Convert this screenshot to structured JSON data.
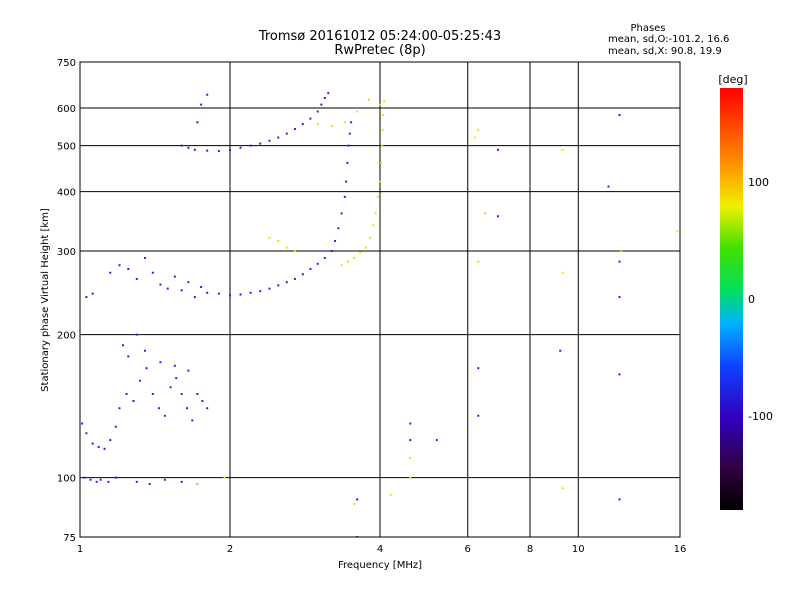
{
  "chart_data": {
    "type": "scatter",
    "title": "Tromsø 20161012 05:24:00-05:25:43",
    "subtitle": "RwPretec (8p)",
    "xlabel": "Frequency [MHz]",
    "ylabel": "Stationary phase Virtual Height [km]",
    "xscale": "log",
    "yscale": "log",
    "xlim": [
      1,
      16
    ],
    "ylim": [
      75,
      750
    ],
    "xticks": [
      1,
      2,
      4,
      6,
      8,
      10,
      16
    ],
    "xtick_labels": [
      "1",
      "2",
      "4",
      "6",
      "8",
      "10",
      "16"
    ],
    "yticks": [
      75,
      100,
      200,
      300,
      400,
      500,
      600,
      750
    ],
    "ytick_labels": [
      "75",
      "100",
      "200",
      "300",
      "400",
      "500",
      "600",
      "750"
    ],
    "grid": true,
    "stats": {
      "heading": "Phases",
      "line1": "mean, sd,O:-101.2, 16.6",
      "line2": "mean, sd,X:  90.8, 19.9"
    },
    "colorbar": {
      "label": "[deg]",
      "range": [
        -180,
        180
      ],
      "ticks": [
        100,
        0,
        -100
      ],
      "tick_labels": [
        "100",
        "0",
        "-100"
      ]
    },
    "series": [
      {
        "mode": "O",
        "color": "#2424e6",
        "points": [
          [
            1.02,
            100
          ],
          [
            1.05,
            99
          ],
          [
            1.08,
            98
          ],
          [
            1.1,
            99
          ],
          [
            1.14,
            98
          ],
          [
            1.18,
            100
          ],
          [
            1.3,
            98
          ],
          [
            1.38,
            97
          ],
          [
            1.48,
            99
          ],
          [
            1.6,
            98
          ],
          [
            1.72,
            97
          ],
          [
            1.01,
            130
          ],
          [
            1.03,
            124
          ],
          [
            1.06,
            118
          ],
          [
            1.09,
            116
          ],
          [
            1.12,
            115
          ],
          [
            1.15,
            120
          ],
          [
            1.18,
            128
          ],
          [
            1.2,
            140
          ],
          [
            1.24,
            150
          ],
          [
            1.28,
            145
          ],
          [
            1.32,
            160
          ],
          [
            1.36,
            170
          ],
          [
            1.4,
            150
          ],
          [
            1.44,
            140
          ],
          [
            1.48,
            135
          ],
          [
            1.52,
            155
          ],
          [
            1.56,
            162
          ],
          [
            1.6,
            150
          ],
          [
            1.64,
            140
          ],
          [
            1.68,
            132
          ],
          [
            1.72,
            150
          ],
          [
            1.76,
            145
          ],
          [
            1.8,
            140
          ],
          [
            1.25,
            180
          ],
          [
            1.35,
            185
          ],
          [
            1.45,
            175
          ],
          [
            1.55,
            172
          ],
          [
            1.65,
            168
          ],
          [
            1.22,
            190
          ],
          [
            1.3,
            200
          ],
          [
            1.03,
            240
          ],
          [
            1.06,
            244
          ],
          [
            1.15,
            270
          ],
          [
            1.2,
            280
          ],
          [
            1.25,
            275
          ],
          [
            1.3,
            262
          ],
          [
            1.35,
            290
          ],
          [
            1.4,
            270
          ],
          [
            1.45,
            255
          ],
          [
            1.5,
            250
          ],
          [
            1.55,
            265
          ],
          [
            1.6,
            248
          ],
          [
            1.65,
            258
          ],
          [
            1.7,
            240
          ],
          [
            1.75,
            252
          ],
          [
            1.8,
            245
          ],
          [
            1.9,
            244
          ],
          [
            2.0,
            242
          ],
          [
            2.1,
            243
          ],
          [
            2.2,
            245
          ],
          [
            2.3,
            247
          ],
          [
            2.4,
            250
          ],
          [
            2.5,
            254
          ],
          [
            2.6,
            258
          ],
          [
            2.7,
            262
          ],
          [
            2.8,
            268
          ],
          [
            2.9,
            275
          ],
          [
            3.0,
            282
          ],
          [
            3.1,
            290
          ],
          [
            3.2,
            300
          ],
          [
            3.25,
            315
          ],
          [
            3.3,
            335
          ],
          [
            3.35,
            360
          ],
          [
            3.4,
            390
          ],
          [
            3.42,
            420
          ],
          [
            3.44,
            460
          ],
          [
            3.46,
            500
          ],
          [
            3.48,
            530
          ],
          [
            3.5,
            560
          ],
          [
            1.6,
            500
          ],
          [
            1.65,
            495
          ],
          [
            1.7,
            490
          ],
          [
            1.8,
            488
          ],
          [
            1.9,
            487
          ],
          [
            2.0,
            490
          ],
          [
            2.1,
            495
          ],
          [
            2.2,
            500
          ],
          [
            2.3,
            505
          ],
          [
            2.4,
            512
          ],
          [
            2.5,
            520
          ],
          [
            2.6,
            530
          ],
          [
            2.7,
            542
          ],
          [
            2.8,
            555
          ],
          [
            2.9,
            570
          ],
          [
            3.0,
            590
          ],
          [
            3.05,
            610
          ],
          [
            3.1,
            630
          ],
          [
            3.15,
            645
          ],
          [
            1.8,
            640
          ],
          [
            1.75,
            610
          ],
          [
            1.72,
            560
          ],
          [
            5.2,
            120
          ],
          [
            6.3,
            170
          ],
          [
            6.3,
            135
          ],
          [
            6.9,
            490
          ],
          [
            6.9,
            355
          ],
          [
            9.2,
            185
          ],
          [
            11.5,
            410
          ],
          [
            12.1,
            580
          ],
          [
            12.1,
            285
          ],
          [
            12.1,
            240
          ],
          [
            12.1,
            165
          ],
          [
            12.1,
            90
          ],
          [
            3.6,
            90
          ],
          [
            3.6,
            75
          ],
          [
            4.6,
            130
          ],
          [
            4.6,
            120
          ]
        ]
      },
      {
        "mode": "X",
        "color": "#f0e000",
        "points": [
          [
            3.35,
            280
          ],
          [
            3.45,
            285
          ],
          [
            3.55,
            290
          ],
          [
            3.65,
            298
          ],
          [
            3.75,
            305
          ],
          [
            3.82,
            320
          ],
          [
            3.88,
            340
          ],
          [
            3.92,
            360
          ],
          [
            3.96,
            390
          ],
          [
            4.0,
            420
          ],
          [
            4.02,
            460
          ],
          [
            4.04,
            500
          ],
          [
            4.05,
            540
          ],
          [
            4.06,
            580
          ],
          [
            4.08,
            620
          ],
          [
            2.4,
            320
          ],
          [
            2.5,
            315
          ],
          [
            2.6,
            305
          ],
          [
            2.7,
            300
          ],
          [
            3.0,
            555
          ],
          [
            3.2,
            550
          ],
          [
            3.4,
            560
          ],
          [
            3.6,
            590
          ],
          [
            3.8,
            625
          ],
          [
            4.0,
            610
          ],
          [
            1.72,
            97
          ],
          [
            1.95,
            100
          ],
          [
            3.55,
            88
          ],
          [
            4.2,
            92
          ],
          [
            4.6,
            110
          ],
          [
            4.6,
            100
          ],
          [
            6.2,
            520
          ],
          [
            6.3,
            540
          ],
          [
            6.3,
            285
          ],
          [
            6.5,
            360
          ],
          [
            9.3,
            490
          ],
          [
            9.3,
            270
          ],
          [
            9.3,
            95
          ],
          [
            12.2,
            300
          ],
          [
            15.8,
            330
          ]
        ]
      }
    ]
  }
}
